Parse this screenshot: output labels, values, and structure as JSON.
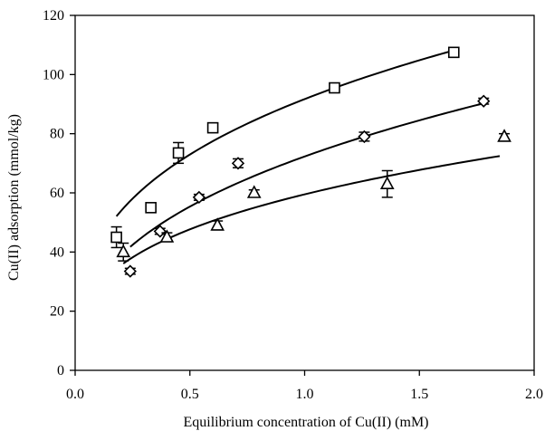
{
  "chart_data": {
    "type": "scatter",
    "title": "",
    "xlabel": "Equilibrium concentration of Cu(II) (mM)",
    "ylabel": "Cu(II) adsorption (mmol/kg)",
    "xlim": [
      0,
      2
    ],
    "ylim": [
      0,
      120
    ],
    "xticks": [
      "0.0",
      "0.5",
      "1.0",
      "1.5",
      "2.0"
    ],
    "yticks": [
      "0",
      "20",
      "40",
      "60",
      "80",
      "100",
      "120"
    ],
    "grid": false,
    "legend": "none",
    "series": [
      {
        "marker": "square",
        "x": [
          0.18,
          0.33,
          0.45,
          0.6,
          1.13,
          1.65
        ],
        "y": [
          45,
          55,
          73.5,
          82,
          95.5,
          107.5
        ],
        "err": [
          3.5,
          1.5,
          3.5,
          1.5,
          1.5,
          1.5
        ],
        "fit": {
          "model": "power",
          "a": 91.7,
          "b": 0.33,
          "x_range": [
            0.18,
            1.65
          ]
        }
      },
      {
        "marker": "diamond",
        "x": [
          0.24,
          0.37,
          0.54,
          0.71,
          1.26,
          1.78
        ],
        "y": [
          33.5,
          47,
          58.5,
          70,
          79,
          91
        ],
        "err": [
          1,
          1,
          1,
          1.5,
          1.5,
          1
        ],
        "fit": {
          "model": "power",
          "a": 72.3,
          "b": 0.385,
          "x_range": [
            0.24,
            1.78
          ]
        }
      },
      {
        "marker": "triangle",
        "x": [
          0.21,
          0.4,
          0.62,
          0.78,
          1.36,
          1.87
        ],
        "y": [
          40,
          45,
          49,
          60,
          63,
          79
        ],
        "err": [
          3,
          1.5,
          1.5,
          1,
          4.5,
          1
        ],
        "fit": {
          "model": "power",
          "a": 59.5,
          "b": 0.32,
          "x_range": [
            0.21,
            1.85
          ]
        }
      }
    ]
  }
}
